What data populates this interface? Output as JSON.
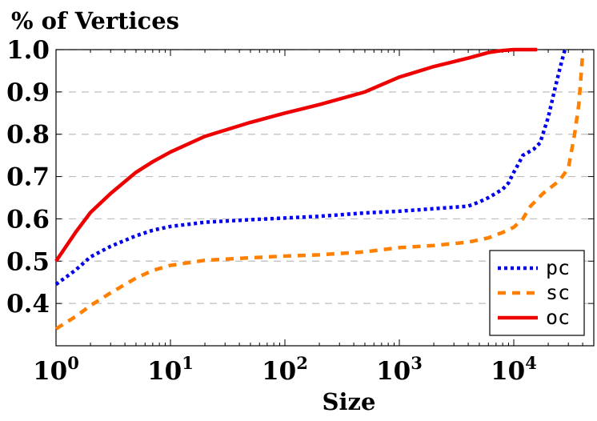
{
  "chart_data": {
    "type": "line",
    "title": "",
    "ylabel": "% of Vertices",
    "xlabel": "Size",
    "x_scale": "log",
    "xlim": [
      1,
      40000
    ],
    "ylim": [
      0.3,
      1.0
    ],
    "grid": "horizontal dashed",
    "legend_position": "bottom-right",
    "y_ticks": [
      "0.4",
      "0.5",
      "0.6",
      "0.7",
      "0.8",
      "0.9",
      "1.0"
    ],
    "x_ticks": [
      {
        "base": "10",
        "exp": "0"
      },
      {
        "base": "10",
        "exp": "1"
      },
      {
        "base": "10",
        "exp": "2"
      },
      {
        "base": "10",
        "exp": "3"
      },
      {
        "base": "10",
        "exp": "4"
      }
    ],
    "series": [
      {
        "name": "pc",
        "color": "#0000ee",
        "style": "dotted",
        "points": [
          [
            1,
            0.445
          ],
          [
            1.5,
            0.48
          ],
          [
            2,
            0.51
          ],
          [
            3,
            0.535
          ],
          [
            5,
            0.56
          ],
          [
            7,
            0.573
          ],
          [
            10,
            0.582
          ],
          [
            20,
            0.592
          ],
          [
            50,
            0.598
          ],
          [
            100,
            0.602
          ],
          [
            200,
            0.606
          ],
          [
            500,
            0.614
          ],
          [
            1000,
            0.618
          ],
          [
            2000,
            0.624
          ],
          [
            4000,
            0.63
          ],
          [
            5000,
            0.64
          ],
          [
            6000,
            0.65
          ],
          [
            8000,
            0.67
          ],
          [
            9000,
            0.685
          ],
          [
            10000,
            0.71
          ],
          [
            11000,
            0.73
          ],
          [
            12000,
            0.75
          ],
          [
            15000,
            0.765
          ],
          [
            17000,
            0.78
          ],
          [
            20000,
            0.84
          ],
          [
            23000,
            0.91
          ],
          [
            25000,
            0.95
          ],
          [
            27000,
            0.985
          ],
          [
            28000,
            1.0
          ]
        ]
      },
      {
        "name": "sc",
        "color": "#ff8000",
        "style": "dashed",
        "points": [
          [
            1,
            0.34
          ],
          [
            1.5,
            0.37
          ],
          [
            2,
            0.395
          ],
          [
            3,
            0.425
          ],
          [
            5,
            0.46
          ],
          [
            7,
            0.478
          ],
          [
            10,
            0.49
          ],
          [
            20,
            0.502
          ],
          [
            50,
            0.508
          ],
          [
            100,
            0.512
          ],
          [
            200,
            0.515
          ],
          [
            500,
            0.522
          ],
          [
            1000,
            0.532
          ],
          [
            2000,
            0.537
          ],
          [
            4000,
            0.545
          ],
          [
            6000,
            0.555
          ],
          [
            8000,
            0.568
          ],
          [
            10000,
            0.58
          ],
          [
            12000,
            0.6
          ],
          [
            14000,
            0.63
          ],
          [
            18000,
            0.66
          ],
          [
            25000,
            0.69
          ],
          [
            30000,
            0.72
          ],
          [
            34000,
            0.8
          ],
          [
            37000,
            0.87
          ],
          [
            39000,
            0.95
          ],
          [
            40000,
            0.99
          ]
        ]
      },
      {
        "name": "oc",
        "color": "#ee0000",
        "style": "solid",
        "points": [
          [
            1,
            0.5
          ],
          [
            1.5,
            0.57
          ],
          [
            2,
            0.615
          ],
          [
            3,
            0.66
          ],
          [
            5,
            0.71
          ],
          [
            7,
            0.735
          ],
          [
            10,
            0.758
          ],
          [
            20,
            0.795
          ],
          [
            50,
            0.828
          ],
          [
            100,
            0.85
          ],
          [
            200,
            0.87
          ],
          [
            500,
            0.9
          ],
          [
            1000,
            0.935
          ],
          [
            2000,
            0.96
          ],
          [
            4000,
            0.98
          ],
          [
            6000,
            0.993
          ],
          [
            8000,
            0.998
          ],
          [
            10000,
            1.0
          ],
          [
            16000,
            1.0
          ]
        ]
      }
    ]
  }
}
